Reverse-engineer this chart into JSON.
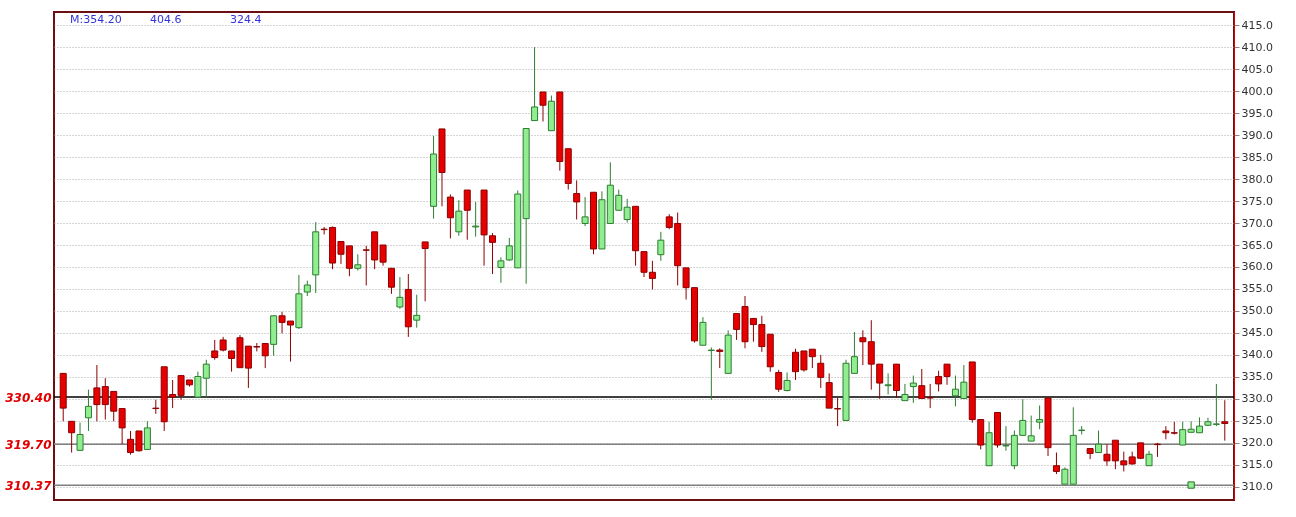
{
  "chart_data": {
    "type": "candlestick",
    "categories": [
      null,
      null,
      null,
      null,
      null,
      null,
      null,
      null,
      null,
      null,
      null,
      null,
      null,
      null,
      null,
      null,
      null,
      null,
      null,
      null,
      null,
      null,
      null,
      null,
      null,
      null,
      null,
      null,
      null,
      null,
      null,
      null,
      null,
      null,
      null,
      null,
      null,
      null,
      null,
      null,
      null,
      null,
      null,
      null,
      null,
      null,
      null,
      null,
      null,
      null,
      null,
      null,
      null,
      null,
      null,
      null,
      null,
      null,
      null,
      null,
      null,
      null,
      null,
      null,
      null,
      null,
      null,
      null,
      null,
      null,
      null,
      null,
      null,
      null,
      null,
      null,
      null,
      null,
      null,
      null,
      null,
      null,
      null,
      null,
      null,
      null,
      null,
      null,
      null,
      null,
      null,
      null,
      null,
      null,
      null,
      null,
      null,
      null,
      null,
      null,
      null,
      null,
      null,
      null,
      null,
      null,
      null,
      null,
      null,
      null,
      null,
      null,
      null,
      null,
      null,
      null,
      null,
      null,
      null,
      null,
      null,
      null,
      null,
      null,
      null,
      null,
      null,
      null,
      null,
      null,
      null,
      null,
      null,
      null,
      null,
      null,
      null,
      null,
      null
    ],
    "ohlc": [
      [
        335.8,
        335.8,
        324.9,
        327.9
      ],
      [
        324.9,
        324.9,
        317.8,
        322.3
      ],
      [
        318.3,
        324.6,
        318.3,
        321.9
      ],
      [
        325.7,
        332.1,
        322.7,
        328.3
      ],
      [
        332.5,
        337.7,
        324.9,
        328.7
      ],
      [
        332.8,
        334.7,
        325.3,
        328.7
      ],
      [
        331.7,
        331.7,
        324.9,
        327.2
      ],
      [
        327.8,
        327.8,
        319.7,
        323.4
      ],
      [
        320.8,
        322.7,
        317.3,
        317.8
      ],
      [
        322.7,
        322.7,
        318.0,
        318.2
      ],
      [
        318.5,
        324.9,
        318.5,
        323.4
      ],
      [
        327.9,
        329.8,
        326.6,
        327.8
      ],
      [
        337.3,
        337.3,
        322.7,
        324.8
      ],
      [
        331.0,
        334.3,
        327.9,
        330.4
      ],
      [
        335.3,
        335.3,
        329.8,
        330.8
      ],
      [
        334.3,
        334.3,
        332.8,
        333.2
      ],
      [
        330.4,
        336.2,
        330.4,
        335.1
      ],
      [
        334.7,
        338.9,
        330.3,
        337.9
      ],
      [
        340.9,
        343.4,
        338.9,
        339.4
      ],
      [
        343.4,
        344.1,
        340.8,
        341.1
      ],
      [
        340.9,
        340.9,
        336.2,
        339.2
      ],
      [
        343.9,
        344.5,
        337.1,
        337.1
      ],
      [
        342.0,
        342.0,
        332.5,
        337.0
      ],
      [
        341.9,
        342.7,
        340.8,
        341.8
      ],
      [
        342.6,
        342.6,
        337.0,
        339.8
      ],
      [
        342.4,
        348.9,
        339.8,
        348.9
      ],
      [
        348.9,
        349.8,
        344.9,
        347.4
      ],
      [
        347.7,
        347.7,
        338.5,
        346.8
      ],
      [
        346.2,
        358.2,
        345.9,
        353.9
      ],
      [
        354.3,
        356.9,
        353.4,
        355.9
      ],
      [
        358.2,
        370.2,
        354.1,
        368.0
      ],
      [
        368.6,
        369.1,
        367.4,
        368.5
      ],
      [
        369.0,
        369.2,
        359.5,
        360.9
      ],
      [
        365.8,
        365.8,
        360.7,
        362.9
      ],
      [
        364.8,
        364.8,
        357.9,
        359.7
      ],
      [
        359.7,
        362.9,
        359.2,
        360.5
      ],
      [
        363.9,
        364.8,
        355.8,
        363.8
      ],
      [
        368.0,
        368.0,
        359.5,
        361.6
      ],
      [
        365.0,
        365.0,
        360.3,
        361.1
      ],
      [
        359.7,
        359.7,
        353.9,
        355.4
      ],
      [
        350.9,
        357.7,
        350.5,
        353.1
      ],
      [
        354.9,
        358.4,
        344.1,
        346.4
      ],
      [
        347.9,
        353.7,
        346.2,
        349.0
      ],
      [
        365.7,
        365.7,
        352.2,
        364.2
      ],
      [
        373.8,
        389.8,
        371.0,
        385.7
      ],
      [
        391.4,
        391.4,
        373.8,
        381.5
      ],
      [
        375.9,
        376.5,
        366.5,
        371.2
      ],
      [
        368.0,
        375.2,
        367.1,
        372.7
      ],
      [
        377.5,
        377.5,
        366.2,
        372.9
      ],
      [
        369.1,
        374.8,
        366.9,
        369.3
      ],
      [
        377.5,
        377.5,
        360.3,
        367.3
      ],
      [
        367.1,
        367.7,
        358.4,
        365.6
      ],
      [
        359.9,
        362.2,
        356.4,
        361.4
      ],
      [
        361.6,
        366.6,
        361.4,
        364.8
      ],
      [
        359.8,
        377.4,
        359.8,
        376.6
      ],
      [
        371.0,
        391.5,
        356.2,
        391.5
      ],
      [
        393.3,
        410.0,
        393.3,
        396.4
      ],
      [
        399.8,
        399.8,
        393.1,
        396.8
      ],
      [
        391.0,
        399.0,
        391.0,
        397.7
      ],
      [
        399.8,
        399.8,
        381.9,
        384.0
      ],
      [
        386.9,
        386.9,
        377.6,
        379.0
      ],
      [
        376.7,
        379.7,
        370.8,
        374.8
      ],
      [
        369.9,
        375.9,
        369.3,
        371.4
      ],
      [
        377.0,
        377.0,
        362.9,
        364.1
      ],
      [
        364.1,
        377.2,
        364.1,
        375.3
      ],
      [
        369.9,
        383.8,
        369.9,
        378.6
      ],
      [
        372.9,
        377.6,
        372.9,
        376.3
      ],
      [
        370.8,
        375.5,
        370.1,
        373.6
      ],
      [
        373.8,
        373.8,
        360.3,
        363.7
      ],
      [
        363.5,
        363.5,
        357.7,
        358.8
      ],
      [
        358.8,
        361.4,
        354.9,
        357.4
      ],
      [
        362.8,
        368.0,
        361.4,
        366.1
      ],
      [
        371.4,
        372.0,
        368.6,
        369.0
      ],
      [
        369.9,
        372.4,
        355.8,
        360.3
      ],
      [
        359.8,
        359.8,
        352.6,
        355.3
      ],
      [
        355.3,
        355.3,
        342.8,
        343.2
      ],
      [
        342.2,
        348.6,
        342.2,
        347.4
      ],
      [
        341.0,
        341.7,
        329.8,
        341.1
      ],
      [
        341.1,
        341.5,
        337.0,
        340.8
      ],
      [
        335.8,
        345.6,
        335.8,
        344.5
      ],
      [
        349.4,
        349.4,
        343.4,
        345.8
      ],
      [
        351.0,
        353.4,
        341.5,
        343.0
      ],
      [
        348.3,
        348.3,
        343.0,
        346.9
      ],
      [
        346.9,
        348.9,
        340.7,
        341.9
      ],
      [
        344.7,
        344.7,
        336.2,
        337.3
      ],
      [
        336.0,
        336.6,
        331.6,
        332.2
      ],
      [
        331.9,
        336.0,
        331.7,
        334.2
      ],
      [
        340.6,
        341.4,
        334.3,
        336.2
      ],
      [
        340.9,
        340.9,
        336.2,
        336.6
      ],
      [
        341.3,
        341.3,
        337.0,
        339.6
      ],
      [
        338.1,
        340.0,
        332.5,
        334.9
      ],
      [
        333.7,
        335.8,
        327.9,
        327.9
      ],
      [
        327.8,
        330.2,
        323.8,
        327.7
      ],
      [
        325.1,
        338.9,
        325.1,
        338.1
      ],
      [
        335.8,
        345.2,
        335.8,
        339.6
      ],
      [
        343.9,
        345.6,
        337.7,
        343.0
      ],
      [
        343.0,
        347.9,
        332.1,
        337.9
      ],
      [
        337.9,
        337.9,
        330.0,
        333.6
      ],
      [
        333.0,
        335.8,
        331.0,
        333.2
      ],
      [
        337.9,
        337.9,
        330.2,
        331.9
      ],
      [
        329.6,
        333.4,
        329.6,
        331.0
      ],
      [
        332.8,
        335.3,
        329.1,
        333.6
      ],
      [
        333.0,
        336.8,
        330.1,
        330.1
      ],
      [
        330.3,
        333.4,
        327.9,
        330.2
      ],
      [
        335.1,
        336.4,
        331.7,
        333.4
      ],
      [
        337.9,
        337.9,
        333.2,
        335.1
      ],
      [
        330.7,
        335.3,
        328.3,
        332.2
      ],
      [
        330.1,
        337.7,
        330.1,
        333.8
      ],
      [
        338.4,
        338.4,
        324.6,
        325.3
      ],
      [
        325.3,
        325.3,
        318.5,
        319.5
      ],
      [
        314.8,
        324.8,
        314.8,
        322.3
      ],
      [
        326.9,
        326.9,
        318.9,
        319.5
      ],
      [
        319.3,
        323.8,
        318.2,
        319.4
      ],
      [
        314.8,
        322.8,
        314.0,
        321.7
      ],
      [
        321.7,
        329.9,
        321.7,
        325.1
      ],
      [
        320.4,
        326.2,
        320.4,
        321.6
      ],
      [
        324.7,
        328.5,
        323.1,
        325.3
      ],
      [
        330.2,
        330.2,
        317.0,
        318.9
      ],
      [
        314.8,
        317.8,
        312.9,
        313.5
      ],
      [
        310.6,
        314.4,
        310.6,
        314.0
      ],
      [
        310.6,
        328.1,
        310.6,
        321.7
      ],
      [
        322.8,
        323.8,
        321.9,
        322.9
      ],
      [
        318.7,
        318.7,
        316.3,
        317.6
      ],
      [
        317.8,
        322.8,
        317.8,
        319.7
      ],
      [
        317.4,
        319.7,
        314.8,
        315.9
      ],
      [
        320.6,
        320.6,
        314.0,
        315.9
      ],
      [
        315.9,
        318.0,
        313.5,
        315.0
      ],
      [
        316.8,
        318.0,
        315.0,
        315.2
      ],
      [
        320.0,
        320.0,
        316.3,
        316.5
      ],
      [
        314.8,
        318.2,
        314.8,
        317.4
      ],
      [
        319.7,
        320.0,
        316.8,
        319.6
      ],
      [
        322.7,
        323.8,
        320.8,
        322.3
      ],
      [
        322.3,
        324.8,
        321.9,
        322.2
      ],
      [
        319.5,
        324.8,
        319.5,
        323.0
      ],
      [
        322.4,
        324.9,
        322.4,
        323.1
      ],
      [
        322.3,
        325.8,
        322.3,
        323.8
      ],
      [
        324.0,
        325.7,
        323.8,
        324.8
      ],
      [
        324.2,
        333.4,
        323.8,
        324.3
      ],
      [
        324.8,
        329.7,
        320.5,
        324.4
      ]
    ],
    "series": [
      {
        "type": "scatter",
        "color": "#90ee90",
        "marker": "square",
        "values": [
          null,
          null,
          null,
          null,
          null,
          null,
          null,
          null,
          null,
          null,
          null,
          null,
          null,
          null,
          null,
          null,
          null,
          null,
          null,
          null,
          null,
          null,
          null,
          null,
          null,
          null,
          null,
          null,
          null,
          null,
          null,
          null,
          null,
          null,
          null,
          null,
          null,
          null,
          null,
          null,
          null,
          null,
          null,
          null,
          null,
          null,
          null,
          null,
          null,
          null,
          null,
          null,
          null,
          null,
          null,
          null,
          null,
          null,
          null,
          null,
          null,
          null,
          null,
          null,
          null,
          null,
          null,
          null,
          null,
          null,
          null,
          null,
          null,
          null,
          null,
          null,
          null,
          null,
          null,
          null,
          null,
          null,
          null,
          null,
          null,
          null,
          null,
          null,
          null,
          null,
          null,
          null,
          null,
          null,
          null,
          null,
          null,
          null,
          null,
          null,
          null,
          null,
          null,
          null,
          null,
          null,
          null,
          null,
          null,
          null,
          null,
          null,
          null,
          null,
          null,
          null,
          null,
          null,
          null,
          null,
          null,
          null,
          null,
          null,
          null,
          null,
          null,
          null,
          null,
          null,
          null,
          null,
          null,
          null,
          310.4,
          null,
          null,
          null,
          null
        ]
      }
    ],
    "ylim": [
      307,
      418
    ],
    "yticks": [
      {
        "value": 310,
        "label": "310.0"
      },
      {
        "value": 315,
        "label": "315.0"
      },
      {
        "value": 320,
        "label": "320.0"
      },
      {
        "value": 325,
        "label": "325.0"
      },
      {
        "value": 330,
        "label": "330.0"
      },
      {
        "value": 335,
        "label": "335.0"
      },
      {
        "value": 340,
        "label": "340.0"
      },
      {
        "value": 345,
        "label": "345.0"
      },
      {
        "value": 350,
        "label": "350.0"
      },
      {
        "value": 355,
        "label": "355.0"
      },
      {
        "value": 360,
        "label": "360.0"
      },
      {
        "value": 365,
        "label": "365.0"
      },
      {
        "value": 370,
        "label": "370.0"
      },
      {
        "value": 375,
        "label": "375.0"
      },
      {
        "value": 380,
        "label": "380.0"
      },
      {
        "value": 385,
        "label": "385.0"
      },
      {
        "value": 390,
        "label": "390.0"
      },
      {
        "value": 395,
        "label": "395.0"
      },
      {
        "value": 400,
        "label": "400.0"
      },
      {
        "value": 405,
        "label": "405.0"
      },
      {
        "value": 410,
        "label": "410.0"
      },
      {
        "value": 415,
        "label": "415.0"
      }
    ],
    "ref_lines": [
      {
        "axis": "y",
        "value": 330.4,
        "label": "330.40",
        "color": "#000000"
      },
      {
        "axis": "y",
        "value": 319.7,
        "label": "319.70",
        "color": "#808080"
      },
      {
        "axis": "y",
        "value": 310.37,
        "label": "310.37",
        "color": "#808080"
      }
    ],
    "annotations": [
      "M:354.20",
      "404.6",
      "324.4"
    ],
    "grid": "y",
    "tick_labels": "y"
  }
}
